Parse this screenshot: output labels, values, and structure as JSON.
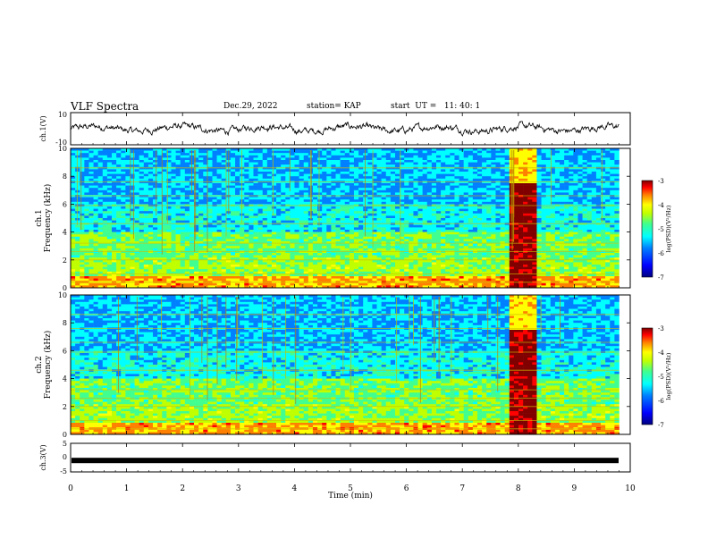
{
  "header": {
    "title": "VLF Spectra",
    "date": "Dec.29, 2022",
    "station": "station= KAP",
    "start_ut": "start  UT =   11: 40: 1"
  },
  "colors": {
    "colormap": [
      "#00007f",
      "#0000ff",
      "#0080ff",
      "#00ffff",
      "#40ff90",
      "#c0ff00",
      "#ffff00",
      "#ff8000",
      "#ff0000",
      "#800000"
    ]
  },
  "chart_data": [
    {
      "type": "line",
      "title": "",
      "ylabel": "ch.1(V)",
      "ylim": [
        -10,
        10
      ],
      "y_ticklabels": [
        "10",
        "-10"
      ],
      "x_range_min": [
        0,
        9.8
      ],
      "series": [
        {
          "values_description_free": true,
          "amplitude_range": [
            -3,
            3
          ]
        }
      ]
    },
    {
      "type": "heatmap",
      "ylabel_line1": "ch.1",
      "ylabel_line2": "Frequency (kHz)",
      "ylim": [
        0,
        10
      ],
      "y_ticklabels": [
        "0",
        "2",
        "4",
        "6",
        "8",
        "10"
      ],
      "colorbar": {
        "label": "log(PSD)(V²/Hz)",
        "range": [
          -7,
          -3
        ],
        "ticklabels": [
          "-3",
          "-4",
          "-5",
          "-6",
          "-7"
        ]
      },
      "bursts_min": [
        [
          7.8,
          8.35
        ]
      ]
    },
    {
      "type": "heatmap",
      "ylabel_line1": "ch.2",
      "ylabel_line2": "Frequency (kHz)",
      "ylim": [
        0,
        10
      ],
      "y_ticklabels": [
        "0",
        "2",
        "4",
        "6",
        "8",
        "10"
      ],
      "colorbar": {
        "label": "log(PSD)(V²/Hz)",
        "range": [
          -7,
          -3
        ],
        "ticklabels": [
          "-3",
          "-4",
          "-5",
          "-6",
          "-7"
        ]
      },
      "bursts_min": [
        [
          7.8,
          8.35
        ]
      ]
    },
    {
      "type": "line",
      "ylabel": "ch.3(V)",
      "ylim": [
        -5,
        5
      ],
      "y_ticklabels": [
        "5",
        "0",
        "-5"
      ],
      "level": -1
    }
  ],
  "xaxis": {
    "label": "Time  (min)",
    "range": [
      0,
      10
    ],
    "ticklabels": [
      "0",
      "1",
      "2",
      "3",
      "4",
      "5",
      "6",
      "7",
      "8",
      "9",
      "10"
    ]
  }
}
